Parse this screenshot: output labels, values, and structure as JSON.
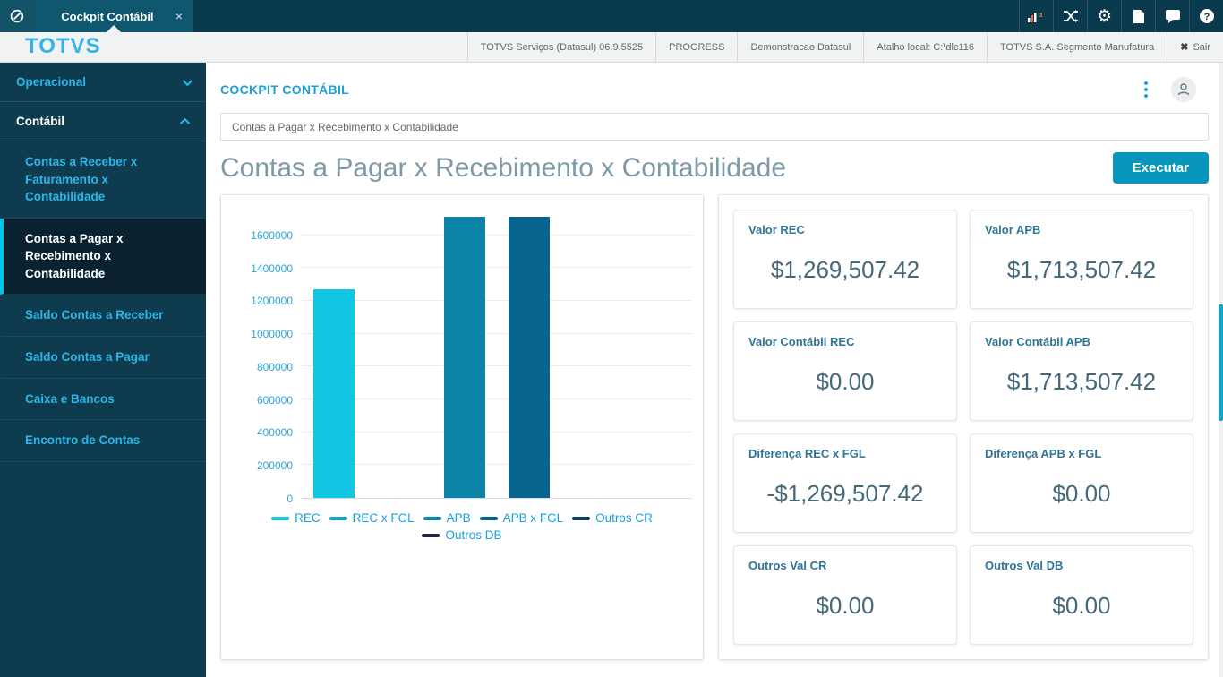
{
  "window": {
    "tab_title": "Cockpit Contábil",
    "brand": "TOTVS"
  },
  "icons": {
    "logo": "⊘",
    "close": "×",
    "exit_x": "✖",
    "gear": "⚙"
  },
  "topbar": {
    "icon_names": [
      "analytics-icon",
      "shuffle-icon",
      "settings-icon",
      "document-icon",
      "chat-icon",
      "help-icon"
    ]
  },
  "infobar": {
    "segments": [
      "TOTVS Serviços (Datasul) 06.9.5525",
      "PROGRESS",
      "Demonstracao Datasul",
      "Atalho local: C:\\dlc116",
      "TOTVS S.A. Segmento Manufatura"
    ],
    "exit_label": "Sair"
  },
  "sidebar": {
    "menus": [
      {
        "label": "Operacional",
        "expanded": false,
        "items": []
      },
      {
        "label": "Contábil",
        "expanded": true,
        "items": [
          {
            "label": "Contas a Receber x Faturamento x Contabilidade",
            "active": false
          },
          {
            "label": "Contas a Pagar x Recebimento x Contabilidade",
            "active": true
          },
          {
            "label": "Saldo Contas a Receber",
            "active": false
          },
          {
            "label": "Saldo Contas a Pagar",
            "active": false
          },
          {
            "label": "Caixa e Bancos",
            "active": false
          },
          {
            "label": "Encontro de Contas",
            "active": false
          }
        ]
      }
    ]
  },
  "main": {
    "breadcrumb": "COCKPIT CONTÁBIL",
    "selector_value": "Contas a Pagar x Recebimento x Contabilidade",
    "title": "Contas a Pagar x Recebimento x Contabilidade",
    "execute_label": "Executar"
  },
  "chart_data": {
    "type": "bar",
    "categories": [
      "REC",
      "REC x FGL",
      "APB",
      "APB x FGL",
      "Outros CR",
      "Outros DB"
    ],
    "values": [
      1269507.42,
      0,
      1713507.42,
      1713507.42,
      0,
      0
    ],
    "colors": [
      "#13c7e4",
      "#12a3c6",
      "#0b84a8",
      "#07648e",
      "#0b3f63",
      "#262042"
    ],
    "title": "",
    "xlabel": "",
    "ylabel": "",
    "ylim": [
      0,
      1713507.42
    ],
    "yticks": [
      0,
      200000,
      400000,
      600000,
      800000,
      1000000,
      1200000,
      1400000,
      1600000
    ],
    "grid": true,
    "legend_position": "bottom"
  },
  "cards": [
    {
      "label": "Valor REC",
      "value": "$1,269,507.42"
    },
    {
      "label": "Valor APB",
      "value": "$1,713,507.42"
    },
    {
      "label": "Valor Contábil REC",
      "value": "$0.00"
    },
    {
      "label": "Valor Contábil APB",
      "value": "$1,713,507.42"
    },
    {
      "label": "Diferença REC x FGL",
      "value": "-$1,269,507.42"
    },
    {
      "label": "Diferença APB x FGL",
      "value": "$0.00"
    },
    {
      "label": "Outros Val CR",
      "value": "$0.00"
    },
    {
      "label": "Outros Val DB",
      "value": "$0.00"
    }
  ],
  "colors": {
    "topbar_bg": "#0a3a4e",
    "tab_bg": "#0e576f",
    "sidebar_bg": "#0e3c4e",
    "sidebar_active_bg": "#0a2230",
    "accent_cyan": "#2cb5e8",
    "accent_blue": "#1b9fd8",
    "button_bg": "#0896bc",
    "scrollbar_thumb": "#14a5c4"
  }
}
